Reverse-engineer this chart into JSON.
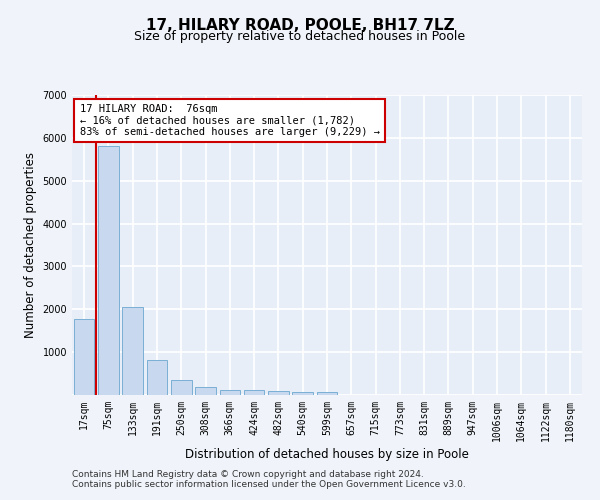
{
  "title": "17, HILARY ROAD, POOLE, BH17 7LZ",
  "subtitle": "Size of property relative to detached houses in Poole",
  "xlabel": "Distribution of detached houses by size in Poole",
  "ylabel": "Number of detached properties",
  "categories": [
    "17sqm",
    "75sqm",
    "133sqm",
    "191sqm",
    "250sqm",
    "308sqm",
    "366sqm",
    "424sqm",
    "482sqm",
    "540sqm",
    "599sqm",
    "657sqm",
    "715sqm",
    "773sqm",
    "831sqm",
    "889sqm",
    "947sqm",
    "1006sqm",
    "1064sqm",
    "1122sqm",
    "1180sqm"
  ],
  "values": [
    1782,
    5800,
    2060,
    820,
    345,
    195,
    125,
    110,
    100,
    75,
    75,
    0,
    0,
    0,
    0,
    0,
    0,
    0,
    0,
    0,
    0
  ],
  "bar_color": "#c8d8ee",
  "bar_edge_color": "#7aafd4",
  "vline_color": "#cc0000",
  "annotation_text": "17 HILARY ROAD:  76sqm\n← 16% of detached houses are smaller (1,782)\n83% of semi-detached houses are larger (9,229) →",
  "annotation_box_color": "#ffffff",
  "annotation_box_edge_color": "#cc0000",
  "ylim": [
    0,
    7000
  ],
  "yticks": [
    0,
    1000,
    2000,
    3000,
    4000,
    5000,
    6000,
    7000
  ],
  "footer_line1": "Contains HM Land Registry data © Crown copyright and database right 2024.",
  "footer_line2": "Contains public sector information licensed under the Open Government Licence v3.0.",
  "bg_color": "#f0f4fa",
  "plot_bg_color": "#e8eef8",
  "grid_color": "#ffffff",
  "title_fontsize": 11,
  "subtitle_fontsize": 9,
  "axis_label_fontsize": 8.5,
  "tick_fontsize": 7,
  "footer_fontsize": 6.5,
  "annotation_fontsize": 7.5
}
